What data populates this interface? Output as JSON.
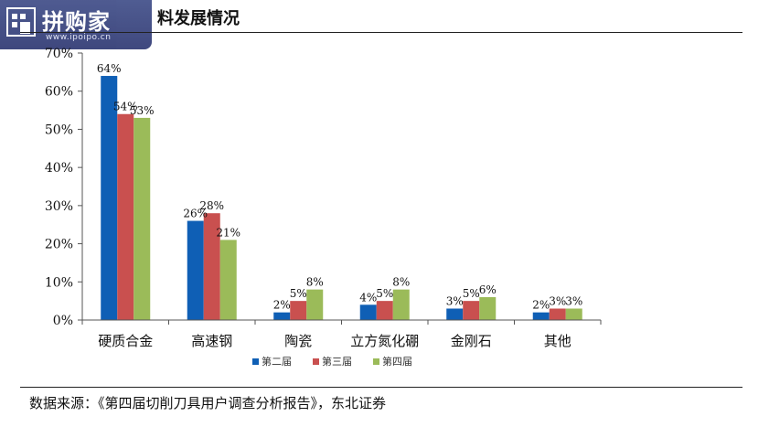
{
  "header": {
    "title": "料发展情况"
  },
  "logo": {
    "text": "拼购家",
    "url": "www.ipoipo.cn",
    "icon": "building-icon"
  },
  "source": {
    "text": "数据来源：《第四届切削刀具用户调查分析报告》，东北证券"
  },
  "colors": {
    "series": [
      "#0f5fb5",
      "#c9504f",
      "#9bbb59"
    ]
  },
  "chart_data": {
    "type": "bar",
    "categories": [
      "硬质合金",
      "高速钢",
      "陶瓷",
      "立方氮化硼",
      "金刚石",
      "其他"
    ],
    "series": [
      {
        "name": "第二届",
        "values": [
          64,
          26,
          2,
          4,
          3,
          2
        ]
      },
      {
        "name": "第三届",
        "values": [
          54,
          28,
          5,
          5,
          5,
          3
        ]
      },
      {
        "name": "第四届",
        "values": [
          53,
          21,
          8,
          8,
          6,
          3
        ]
      }
    ],
    "data_labels": [
      [
        "64%",
        "26%",
        "2%",
        "4%",
        "3%",
        "2%"
      ],
      [
        "54%",
        "28%",
        "5%",
        "5%",
        "5%",
        "3%"
      ],
      [
        "53%",
        "21%",
        "8%",
        "8%",
        "6%",
        "3%"
      ]
    ],
    "y_ticks": [
      0,
      10,
      20,
      30,
      40,
      50,
      60,
      70
    ],
    "y_tick_labels": [
      "0%",
      "10%",
      "20%",
      "30%",
      "40%",
      "50%",
      "60%",
      "70%"
    ],
    "ylim": [
      0,
      70
    ],
    "grid": false,
    "legend_position": "bottom-center"
  }
}
